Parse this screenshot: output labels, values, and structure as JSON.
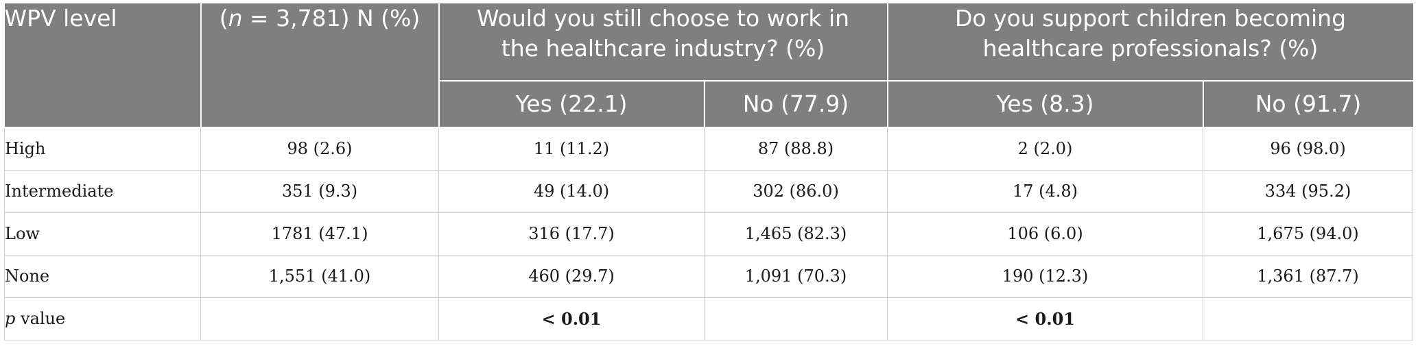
{
  "header": {
    "col_level": "WPV level",
    "col_n_prefix": "n",
    "col_n_rest": " = 3,781) N (%)",
    "col_n_open": "(",
    "group1": "Would you still choose to work in the healthcare industry? (%)",
    "group2": "Do you support children becoming healthcare professionals? (%)",
    "g1_yes": "Yes (22.1)",
    "g1_no": "No (77.9)",
    "g2_yes": "Yes (8.3)",
    "g2_no": "No (91.7)"
  },
  "rows": [
    {
      "level": "High",
      "n": "98 (2.6)",
      "g1_yes": "11 (11.2)",
      "g1_no": "87 (88.8)",
      "g2_yes": "2 (2.0)",
      "g2_no": "96 (98.0)"
    },
    {
      "level": "Intermediate",
      "n": "351 (9.3)",
      "g1_yes": "49 (14.0)",
      "g1_no": "302 (86.0)",
      "g2_yes": "17 (4.8)",
      "g2_no": "334 (95.2)"
    },
    {
      "level": "Low",
      "n": "1781 (47.1)",
      "g1_yes": "316 (17.7)",
      "g1_no": "1,465 (82.3)",
      "g2_yes": "106 (6.0)",
      "g2_no": "1,675 (94.0)"
    },
    {
      "level": "None",
      "n": "1,551 (41.0)",
      "g1_yes": "460 (29.7)",
      "g1_no": "1,091 (70.3)",
      "g2_yes": "190 (12.3)",
      "g2_no": "1,361 (87.7)"
    }
  ],
  "pvalue": {
    "label_italic": "p",
    "label_rest": " value",
    "n": "",
    "g1_yes": "< 0.01",
    "g1_no": "",
    "g2_yes": "< 0.01",
    "g2_no": ""
  },
  "colors": {
    "header_bg": "#7f7f7f",
    "header_text": "#ffffff",
    "border": "#cfcfcf"
  }
}
